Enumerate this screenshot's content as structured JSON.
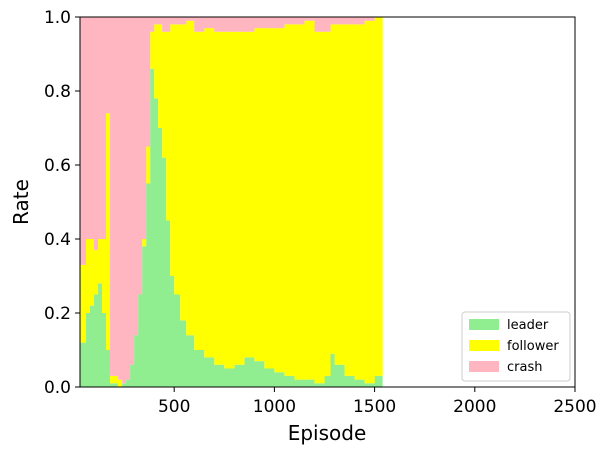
{
  "chart_data": {
    "type": "area",
    "stacked": true,
    "xlabel": "Episode",
    "ylabel": "Rate",
    "xlim": [
      30,
      2500
    ],
    "ylim": [
      0,
      1
    ],
    "xticks": [
      500,
      1000,
      1500,
      2000,
      2500
    ],
    "yticks": [
      0.0,
      0.2,
      0.4,
      0.6,
      0.8,
      1.0
    ],
    "ytick_labels": [
      "0.0",
      "0.2",
      "0.4",
      "0.6",
      "0.8",
      "1.0"
    ],
    "grid": false,
    "legend_position": "lower-right",
    "x": [
      30,
      60,
      80,
      100,
      120,
      140,
      160,
      180,
      200,
      220,
      240,
      260,
      280,
      300,
      320,
      340,
      360,
      380,
      400,
      420,
      440,
      460,
      480,
      500,
      530,
      560,
      600,
      650,
      700,
      750,
      800,
      850,
      900,
      950,
      1000,
      1050,
      1100,
      1150,
      1200,
      1250,
      1280,
      1300,
      1350,
      1400,
      1450,
      1500,
      1540
    ],
    "series": [
      {
        "name": "leader",
        "color": "#90ee90",
        "values": [
          0.12,
          0.2,
          0.22,
          0.25,
          0.28,
          0.2,
          0.1,
          0.01,
          0.01,
          0.0,
          0.01,
          0.02,
          0.06,
          0.14,
          0.25,
          0.38,
          0.55,
          0.86,
          0.78,
          0.7,
          0.62,
          0.45,
          0.3,
          0.25,
          0.18,
          0.14,
          0.1,
          0.08,
          0.06,
          0.05,
          0.06,
          0.08,
          0.07,
          0.05,
          0.04,
          0.03,
          0.02,
          0.02,
          0.01,
          0.03,
          0.09,
          0.06,
          0.03,
          0.02,
          0.01,
          0.03,
          0.03
        ]
      },
      {
        "name": "follower",
        "color": "#ffff00",
        "values": [
          0.21,
          0.2,
          0.18,
          0.12,
          0.12,
          0.2,
          0.64,
          0.02,
          0.02,
          0.02,
          0.0,
          0.0,
          0.0,
          0.0,
          0.0,
          0.02,
          0.1,
          0.1,
          0.2,
          0.28,
          0.34,
          0.51,
          0.68,
          0.73,
          0.8,
          0.85,
          0.86,
          0.89,
          0.9,
          0.91,
          0.9,
          0.88,
          0.9,
          0.92,
          0.93,
          0.95,
          0.96,
          0.97,
          0.95,
          0.93,
          0.89,
          0.92,
          0.95,
          0.96,
          0.98,
          0.97,
          0.97
        ]
      },
      {
        "name": "crash",
        "color": "#ffb6c1",
        "values": [
          0.67,
          0.6,
          0.6,
          0.63,
          0.6,
          0.6,
          0.26,
          0.97,
          0.97,
          0.98,
          0.99,
          0.98,
          0.94,
          0.86,
          0.75,
          0.6,
          0.35,
          0.04,
          0.02,
          0.02,
          0.04,
          0.04,
          0.02,
          0.02,
          0.02,
          0.01,
          0.04,
          0.03,
          0.04,
          0.04,
          0.04,
          0.04,
          0.03,
          0.03,
          0.03,
          0.02,
          0.02,
          0.01,
          0.04,
          0.04,
          0.02,
          0.02,
          0.02,
          0.02,
          0.01,
          0.0,
          0.0
        ]
      }
    ]
  }
}
